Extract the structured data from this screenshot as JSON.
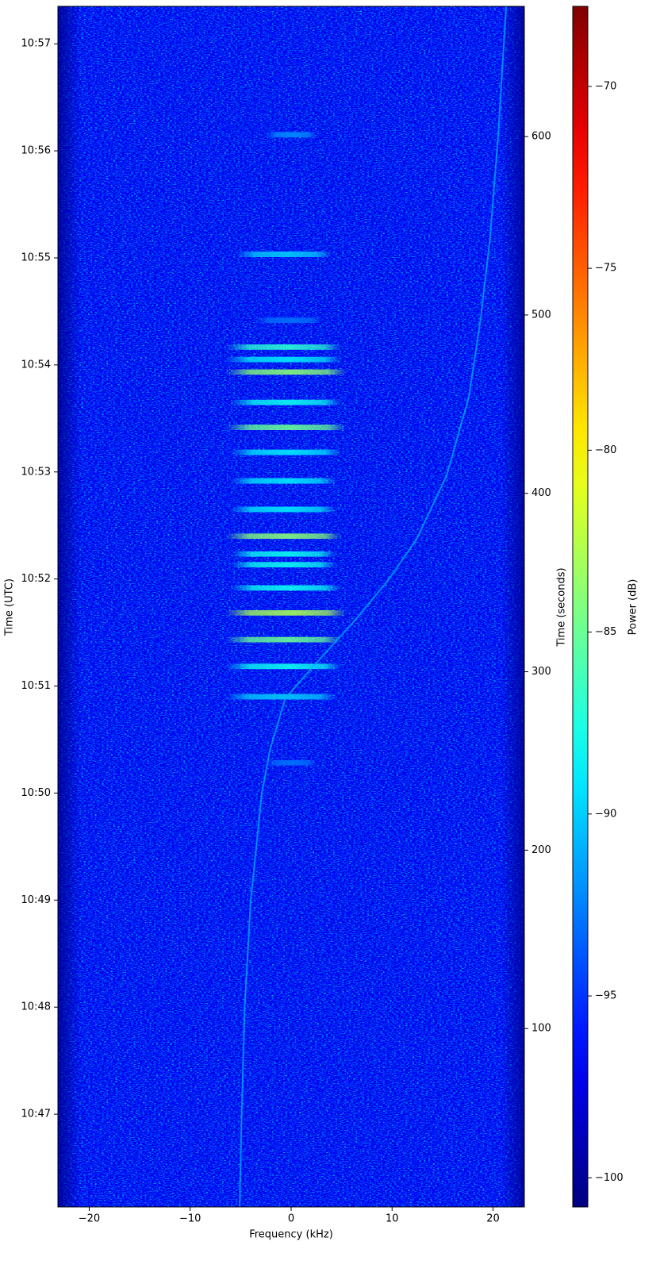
{
  "chart_data": {
    "type": "spectrogram",
    "xlabel": "Frequency (kHz)",
    "ylabel": "Time (UTC)",
    "y2label": "Time (seconds)",
    "colorbar_label": "Power (dB)",
    "colormap": "jet",
    "xlim": [
      -23.1,
      23.1
    ],
    "xticks": [
      {
        "value": -20,
        "label": "−20"
      },
      {
        "value": -10,
        "label": "−10"
      },
      0,
      10,
      20
    ],
    "ylim": [
      0,
      673
    ],
    "yticks": [
      {
        "value": 52,
        "label": "10:47"
      },
      {
        "value": 112,
        "label": "10:48"
      },
      {
        "value": 172,
        "label": "10:49"
      },
      {
        "value": 232,
        "label": "10:50"
      },
      {
        "value": 292,
        "label": "10:51"
      },
      {
        "value": 352,
        "label": "10:52"
      },
      {
        "value": 412,
        "label": "10:53"
      },
      {
        "value": 472,
        "label": "10:54"
      },
      {
        "value": 532,
        "label": "10:55"
      },
      {
        "value": 592,
        "label": "10:56"
      },
      {
        "value": 652,
        "label": "10:57"
      }
    ],
    "y2lim": [
      0,
      673
    ],
    "y2ticks": [
      100,
      200,
      300,
      400,
      500,
      600
    ],
    "clim": [
      -100.8,
      -67.8
    ],
    "cticks": [
      {
        "value": -100,
        "label": "−100"
      },
      {
        "value": -95,
        "label": "−95"
      },
      {
        "value": -90,
        "label": "−90"
      },
      {
        "value": -85,
        "label": "−85"
      },
      {
        "value": -80,
        "label": "−80"
      },
      {
        "value": -75,
        "label": "−75"
      },
      {
        "value": -70,
        "label": "−70"
      }
    ],
    "floor_db": -97,
    "track": {
      "x": [
        -5.1,
        -4.9,
        -4.6,
        -4.0,
        -2.9,
        -2.1,
        -0.6,
        2.2,
        6.5,
        9.7,
        12.4,
        15.4,
        17.6,
        18.8,
        19.7,
        20.5,
        21.3
      ],
      "y": [
        0,
        52,
        112,
        172,
        232,
        256,
        285,
        303,
        330,
        352,
        374,
        410,
        454,
        499,
        543,
        600,
        673
      ],
      "db": -91
    },
    "bursts": {
      "t": [
        601,
        534,
        497,
        482,
        475,
        468,
        451,
        437,
        423,
        407,
        391,
        376,
        366,
        360,
        347,
        333,
        318,
        303,
        286,
        249
      ],
      "f_lo": [
        -2.5,
        -5.5,
        -3.5,
        -6.5,
        -6.5,
        -6.5,
        -6,
        -6.5,
        -6,
        -6,
        -6,
        -6.5,
        -6,
        -6,
        -6,
        -6.5,
        -6.5,
        -6.5,
        -6.5,
        -2.5
      ],
      "f_hi": [
        2.5,
        4,
        3,
        5,
        5,
        5.5,
        5,
        5.5,
        5,
        4.5,
        4.5,
        5,
        4.5,
        4.5,
        5,
        5.5,
        5,
        5,
        4.5,
        2.5
      ],
      "db": [
        -92,
        -90,
        -93,
        -87,
        -89,
        -84,
        -88,
        -85,
        -89,
        -89,
        -89,
        -84,
        -88,
        -88,
        -88,
        -83,
        -85,
        -88,
        -90,
        -93
      ]
    }
  }
}
